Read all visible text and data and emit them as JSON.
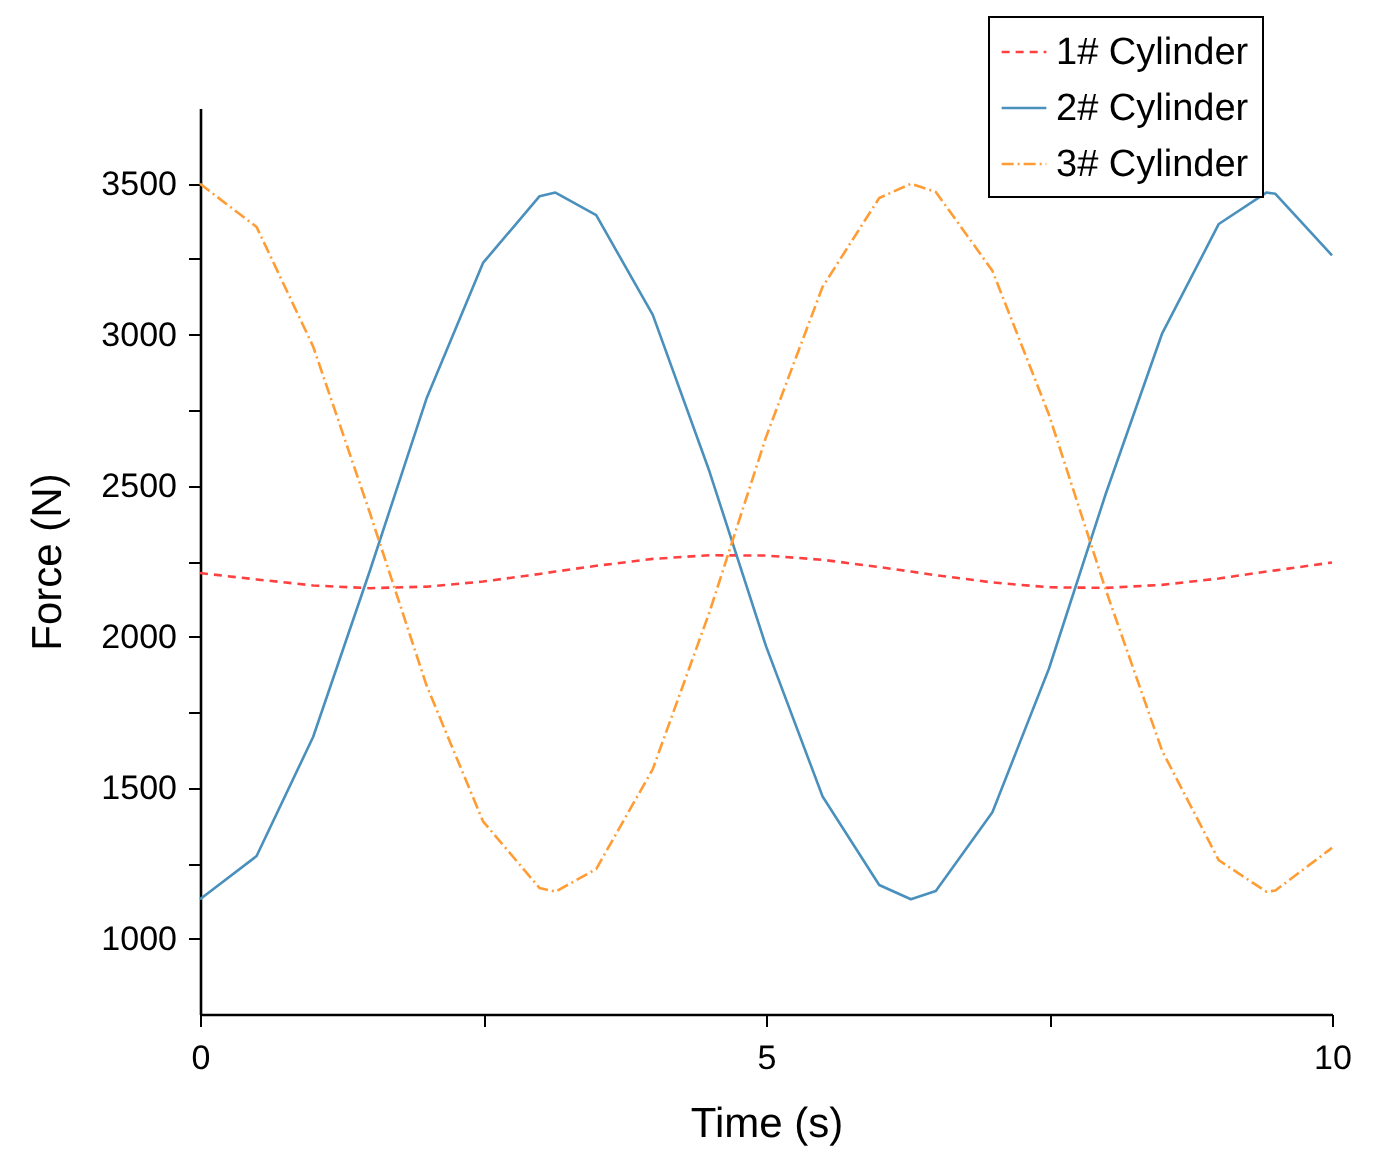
{
  "chart_data": {
    "type": "line",
    "xlabel": "Time (s)",
    "ylabel": "Force (N)",
    "x": [
      0,
      0.5,
      1,
      1.5,
      2,
      2.5,
      3,
      3.14,
      3.5,
      4,
      4.5,
      5,
      5.5,
      6,
      6.28,
      6.5,
      7,
      7.5,
      8,
      8.5,
      9,
      9.42,
      9.5,
      10
    ],
    "series": [
      {
        "name": "1# Cylinder",
        "color": "#ff4040",
        "line_style": "dashed",
        "values": [
          2210,
          2189,
          2169,
          2160,
          2165,
          2182,
          2207,
          2215,
          2234,
          2257,
          2269,
          2268,
          2254,
          2230,
          2215,
          2203,
          2179,
          2163,
          2161,
          2171,
          2192,
          2215,
          2219,
          2245
        ]
      },
      {
        "name": "2# Cylinder",
        "color": "#4a90bd",
        "line_style": "solid",
        "values": [
          1130,
          1273,
          1668,
          2217,
          2787,
          3237,
          3458,
          3470,
          3395,
          3065,
          2547,
          1968,
          1470,
          1177,
          1130,
          1157,
          1418,
          1894,
          2471,
          3004,
          3366,
          3470,
          3466,
          3262
        ]
      },
      {
        "name": "3# Cylinder",
        "color": "#ff9c33",
        "line_style": "dashdot",
        "values": [
          3499,
          3356,
          2960,
          2410,
          1839,
          1388,
          1167,
          1155,
          1230,
          1561,
          2080,
          2660,
          3158,
          3452,
          3499,
          3472,
          3211,
          2734,
          2156,
          1621,
          1259,
          1155,
          1159,
          1300
        ]
      }
    ],
    "xlim": [
      0,
      10
    ],
    "xticks": [
      0,
      {
        "value": 2.5,
        "label": null
      },
      5,
      {
        "value": 7.5,
        "label": null
      },
      10
    ],
    "ylim": [
      750,
      3750
    ],
    "yticks": [
      1000,
      {
        "value": 1250,
        "label": null
      },
      1500,
      {
        "value": 1750,
        "label": null
      },
      2000,
      {
        "value": 2250,
        "label": null
      },
      2500,
      {
        "value": 2750,
        "label": null
      },
      3000,
      {
        "value": 3250,
        "label": null
      },
      3500
    ],
    "legend": "top right",
    "grid": false
  }
}
